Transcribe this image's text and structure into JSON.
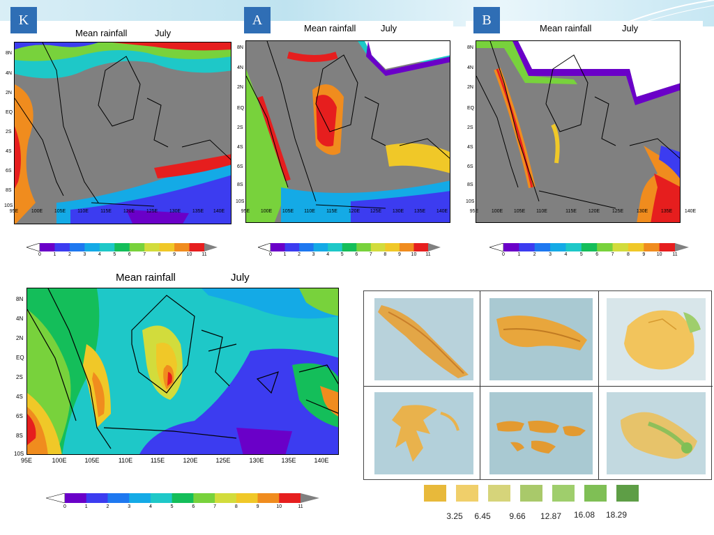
{
  "panels": {
    "K": {
      "badge": "K",
      "title_left": "Mean rainfall",
      "title_right": "July"
    },
    "A": {
      "badge": "A",
      "title_left": "Mean rainfall",
      "title_right": "July"
    },
    "B": {
      "badge": "B",
      "title_left": "Mean rainfall",
      "title_right": "July"
    },
    "main": {
      "title_left": "Mean rainfall",
      "title_right": "July"
    }
  },
  "axis": {
    "y_ticks": [
      "8N",
      "4N",
      "2N",
      "EQ",
      "2S",
      "4S",
      "6S",
      "8S",
      "10S"
    ],
    "x_ticks": [
      "95E",
      "100E",
      "105E",
      "110E",
      "115E",
      "120E",
      "125E",
      "130E",
      "135E",
      "140E"
    ]
  },
  "colorbar": {
    "labels": [
      "0",
      "1",
      "2",
      "3",
      "4",
      "5",
      "6",
      "7",
      "8",
      "9",
      "10",
      "11"
    ],
    "colors": [
      "#6a00c8",
      "#3c3cf0",
      "#1e78f0",
      "#14aae6",
      "#1ec8c8",
      "#14be5a",
      "#78d23c",
      "#d2dc3c",
      "#f0c828",
      "#f08c1e",
      "#e61e1e",
      "#808080"
    ]
  },
  "legend": {
    "values": [
      "3.25",
      "6.45",
      "9.66",
      "12.87",
      "16.08",
      "18.29"
    ],
    "colors": [
      "#e8b93a",
      "#f0cf6a",
      "#d6d47a",
      "#a9c96a",
      "#9fce6c",
      "#7fbf55",
      "#5e9e46"
    ]
  }
}
